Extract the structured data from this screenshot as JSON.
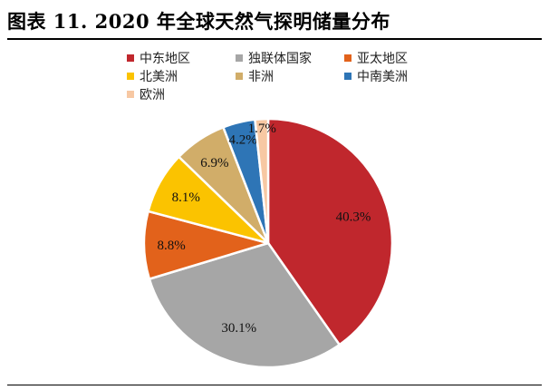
{
  "title": "图表 11. 2020 年全球天然气探明储量分布",
  "colors": {
    "中东地区": "#c0272d",
    "独联体国家": "#a6a6a6",
    "亚太地区": "#e2621b",
    "北美洲": "#fbc300",
    "非洲": "#d1ad69",
    "中南美洲": "#2e75b6",
    "欧洲": "#f7c8a3"
  },
  "chart_data": {
    "type": "pie",
    "title": "2020 年全球天然气探明储量分布",
    "legend_position": "top",
    "categories": [
      "中东地区",
      "独联体国家",
      "亚太地区",
      "北美洲",
      "非洲",
      "中南美洲",
      "欧洲"
    ],
    "values": [
      40.3,
      30.1,
      8.8,
      8.1,
      6.9,
      4.2,
      1.7
    ],
    "data_labels": [
      "40.3%",
      "30.1%",
      "8.8%",
      "8.1%",
      "6.9%",
      "4.2%",
      "1.7%"
    ],
    "legend_order": [
      "中东地区",
      "独联体国家",
      "亚太地区",
      "北美洲",
      "非洲",
      "中南美洲",
      "欧洲"
    ]
  }
}
